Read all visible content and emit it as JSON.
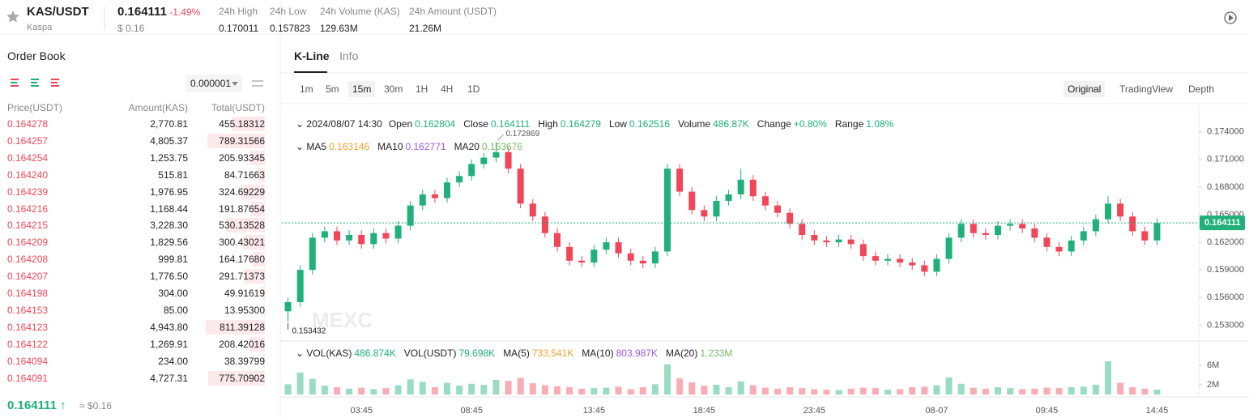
{
  "header": {
    "symbol": "KAS/USDT",
    "name": "Kaspa",
    "price": "0.164111",
    "change": "-1.49%",
    "price_usd": "$ 0.16",
    "stats": [
      {
        "label": "24h High",
        "value": "0.170011"
      },
      {
        "label": "24h Low",
        "value": "0.157823"
      },
      {
        "label": "24h Volume (KAS)",
        "value": "129.63M"
      },
      {
        "label": "24h Amount (USDT)",
        "value": "21.26M"
      }
    ]
  },
  "order_book": {
    "title": "Order Book",
    "precision": "0.000001",
    "columns": [
      "Price(USDT)",
      "Amount(KAS)",
      "Total(USDT)"
    ],
    "rows": [
      [
        "0.164278",
        "2,770.81",
        "455.18312"
      ],
      [
        "0.164257",
        "4,805.37",
        "789.31566"
      ],
      [
        "0.164254",
        "1,253.75",
        "205.93345"
      ],
      [
        "0.164240",
        "515.81",
        "84.71663"
      ],
      [
        "0.164239",
        "1,976.95",
        "324.69229"
      ],
      [
        "0.164216",
        "1,168.44",
        "191.87654"
      ],
      [
        "0.164215",
        "3,228.30",
        "530.13528"
      ],
      [
        "0.164209",
        "1,829.56",
        "300.43021"
      ],
      [
        "0.164208",
        "999.81",
        "164.17680"
      ],
      [
        "0.164207",
        "1,776.50",
        "291.71373"
      ],
      [
        "0.164198",
        "304.00",
        "49.91619"
      ],
      [
        "0.164153",
        "85.00",
        "13.95300"
      ],
      [
        "0.164123",
        "4,943.80",
        "811.39128"
      ],
      [
        "0.164122",
        "1,269.91",
        "208.42016"
      ],
      [
        "0.164094",
        "234.00",
        "38.39799"
      ],
      [
        "0.164091",
        "4,727.31",
        "775.70902"
      ]
    ],
    "last_price": "0.164111",
    "last_price_usd": "≈ $0.16"
  },
  "chart_panel": {
    "tabs": [
      "K-Line",
      "Info"
    ],
    "intervals": [
      "1m",
      "5m",
      "15m",
      "30m",
      "1H",
      "4H",
      "1D"
    ],
    "views": [
      "Original",
      "TradingView",
      "Depth"
    ],
    "info": {
      "time": "2024/08/07 14:30",
      "fields": [
        {
          "label": "Open",
          "value": "0.162804"
        },
        {
          "label": "Close",
          "value": "0.164111"
        },
        {
          "label": "High",
          "value": "0.164279"
        },
        {
          "label": "Low",
          "value": "0.162516"
        },
        {
          "label": "Volume",
          "value": "486.87K"
        },
        {
          "label": "Change",
          "value": "+0.80%"
        },
        {
          "label": "Range",
          "value": "1.08%"
        }
      ]
    },
    "ma": [
      {
        "label": "MA5",
        "value": "0.163146",
        "color": "#f0a030"
      },
      {
        "label": "MA10",
        "value": "0.162771",
        "color": "#9b59d6"
      },
      {
        "label": "MA20",
        "value": "0.163676",
        "color": "#7cb86a"
      }
    ],
    "vol": [
      {
        "label": "VOL(KAS)",
        "value": "486.874K",
        "color": "#20b07a"
      },
      {
        "label": "VOL(USDT)",
        "value": "79.698K",
        "color": "#20b07a"
      },
      {
        "label": "MA(5)",
        "value": "733.541K",
        "color": "#f0a030"
      },
      {
        "label": "MA(10)",
        "value": "803.987K",
        "color": "#9b59d6"
      },
      {
        "label": "MA(20)",
        "value": "1.233M",
        "color": "#7cb86a"
      }
    ]
  },
  "chart_data": {
    "type": "candlestick",
    "up_color": "#20b07a",
    "down_color": "#f0465a",
    "categories": [
      null,
      null,
      null,
      null,
      null,
      null,
      "03:45",
      null,
      null,
      null,
      null,
      null,
      null,
      null,
      null,
      "08:45",
      null,
      null,
      null,
      null,
      null,
      null,
      null,
      null,
      null,
      "13:45",
      null,
      null,
      null,
      null,
      null,
      null,
      null,
      null,
      "18:45",
      null,
      null,
      null,
      null,
      null,
      null,
      null,
      null,
      "23:45",
      null,
      null,
      null,
      null,
      null,
      null,
      null,
      null,
      null,
      "08-07",
      null,
      null,
      null,
      null,
      null,
      null,
      null,
      null,
      "09:45",
      null,
      null,
      null,
      null,
      null,
      null,
      null,
      null,
      "14:45"
    ],
    "open": [
      0.1545,
      0.1555,
      0.159,
      0.1625,
      0.1632,
      0.1622,
      0.1628,
      0.1618,
      0.163,
      0.1624,
      0.1638,
      0.166,
      0.1672,
      0.1668,
      0.1685,
      0.1692,
      0.1705,
      0.1712,
      0.1718,
      0.17,
      0.1662,
      0.1648,
      0.163,
      0.1615,
      0.16,
      0.1598,
      0.1612,
      0.162,
      0.1608,
      0.16,
      0.1597,
      0.161,
      0.17,
      0.1675,
      0.1655,
      0.1648,
      0.1665,
      0.1672,
      0.1688,
      0.167,
      0.166,
      0.1652,
      0.164,
      0.1628,
      0.1622,
      0.162,
      0.1623,
      0.1618,
      0.1605,
      0.16,
      0.1602,
      0.1598,
      0.1595,
      0.1588,
      0.1602,
      0.1625,
      0.164,
      0.163,
      0.1628,
      0.1638,
      0.164,
      0.1635,
      0.1625,
      0.1615,
      0.161,
      0.1622,
      0.1632,
      0.1645,
      0.1662,
      0.1648,
      0.1632,
      0.1622
    ],
    "high": [
      0.156,
      0.1595,
      0.163,
      0.1637,
      0.1637,
      0.1633,
      0.1633,
      0.1635,
      0.1635,
      0.1643,
      0.1665,
      0.1677,
      0.1677,
      0.169,
      0.1697,
      0.171,
      0.1717,
      0.1729,
      0.1723,
      0.1705,
      0.1667,
      0.1653,
      0.1635,
      0.162,
      0.1605,
      0.1617,
      0.1625,
      0.1625,
      0.1613,
      0.1605,
      0.1615,
      0.1705,
      0.1705,
      0.168,
      0.166,
      0.167,
      0.1677,
      0.17,
      0.1693,
      0.1675,
      0.1665,
      0.1657,
      0.1645,
      0.1633,
      0.1627,
      0.1628,
      0.1628,
      0.1623,
      0.161,
      0.1607,
      0.1607,
      0.1603,
      0.16,
      0.1607,
      0.163,
      0.1645,
      0.1645,
      0.1635,
      0.1643,
      0.1645,
      0.1645,
      0.164,
      0.163,
      0.162,
      0.1627,
      0.1637,
      0.165,
      0.167,
      0.1667,
      0.1653,
      0.1637,
      0.1646
    ],
    "low": [
      0.1534,
      0.155,
      0.1585,
      0.162,
      0.1617,
      0.1617,
      0.1613,
      0.1613,
      0.1619,
      0.1619,
      0.1633,
      0.1655,
      0.1663,
      0.1663,
      0.168,
      0.1687,
      0.17,
      0.1707,
      0.1695,
      0.1657,
      0.1643,
      0.1625,
      0.161,
      0.1595,
      0.1593,
      0.1593,
      0.1607,
      0.1603,
      0.1595,
      0.1592,
      0.1592,
      0.1605,
      0.167,
      0.165,
      0.1643,
      0.1643,
      0.166,
      0.1667,
      0.1665,
      0.1655,
      0.1647,
      0.1635,
      0.1623,
      0.1617,
      0.1615,
      0.1615,
      0.1613,
      0.16,
      0.1595,
      0.1595,
      0.1593,
      0.159,
      0.1583,
      0.1583,
      0.1597,
      0.162,
      0.1625,
      0.1623,
      0.1623,
      0.1633,
      0.163,
      0.162,
      0.161,
      0.1605,
      0.1605,
      0.1617,
      0.1627,
      0.164,
      0.1643,
      0.1627,
      0.1617,
      0.1617
    ],
    "close": [
      0.1555,
      0.159,
      0.1625,
      0.1632,
      0.1622,
      0.1628,
      0.1618,
      0.163,
      0.1624,
      0.1638,
      0.166,
      0.1672,
      0.1668,
      0.1685,
      0.1692,
      0.1705,
      0.1712,
      0.1718,
      0.17,
      0.1662,
      0.1648,
      0.163,
      0.1615,
      0.16,
      0.1598,
      0.1612,
      0.162,
      0.1608,
      0.16,
      0.1597,
      0.161,
      0.17,
      0.1675,
      0.1655,
      0.1648,
      0.1665,
      0.1672,
      0.1688,
      0.167,
      0.166,
      0.1652,
      0.164,
      0.1628,
      0.1622,
      0.162,
      0.1623,
      0.1618,
      0.1605,
      0.16,
      0.1602,
      0.1598,
      0.1595,
      0.1588,
      0.1602,
      0.1625,
      0.164,
      0.163,
      0.1628,
      0.1638,
      0.164,
      0.1635,
      0.1625,
      0.1615,
      0.161,
      0.1622,
      0.1632,
      0.1645,
      0.1662,
      0.1648,
      0.1632,
      0.1622,
      0.1641
    ],
    "volume": [
      2100000,
      4500000,
      3200000,
      1800000,
      1500000,
      1200000,
      1400000,
      1100000,
      1300000,
      1900000,
      3100000,
      2600000,
      1500000,
      2400000,
      1800000,
      2200000,
      2000000,
      3000000,
      2800000,
      3400000,
      2300000,
      1900000,
      1700000,
      1500000,
      1200000,
      1300000,
      1400000,
      1600000,
      1100000,
      1500000,
      2100000,
      6200000,
      3300000,
      2500000,
      1800000,
      2000000,
      1500000,
      2700000,
      1900000,
      1400000,
      1200000,
      1500000,
      1300000,
      1100000,
      1000000,
      900000,
      1200000,
      1400000,
      1300000,
      1000000,
      1100000,
      1500000,
      1600000,
      1900000,
      3500000,
      2200000,
      1400000,
      1200000,
      1500000,
      1300000,
      1100000,
      1200000,
      1400000,
      1300000,
      1500000,
      1600000,
      2000000,
      6800000,
      2400000,
      1500000,
      1200000,
      1000000
    ],
    "ylim": [
      0.1518,
      0.176
    ],
    "yticks": [
      {
        "value": 0.174,
        "label": "0.174000"
      },
      {
        "value": 0.171,
        "label": "0.171000"
      },
      {
        "value": 0.168,
        "label": "0.168000"
      },
      {
        "value": 0.165,
        "label": "0.165000"
      },
      {
        "value": 0.162,
        "label": "0.162000"
      },
      {
        "value": 0.159,
        "label": "0.159000"
      },
      {
        "value": 0.156,
        "label": "0.156000"
      },
      {
        "value": 0.153,
        "label": "0.153000"
      }
    ],
    "y2lim": [
      0,
      10300000
    ],
    "y2ticks": [
      {
        "value": 2000000,
        "label": "2M"
      },
      {
        "value": 6000000,
        "label": "6M"
      }
    ],
    "last_price": 0.164111,
    "max_label": "0.172869",
    "min_label": "0.153432",
    "watermark": "MEXC"
  }
}
